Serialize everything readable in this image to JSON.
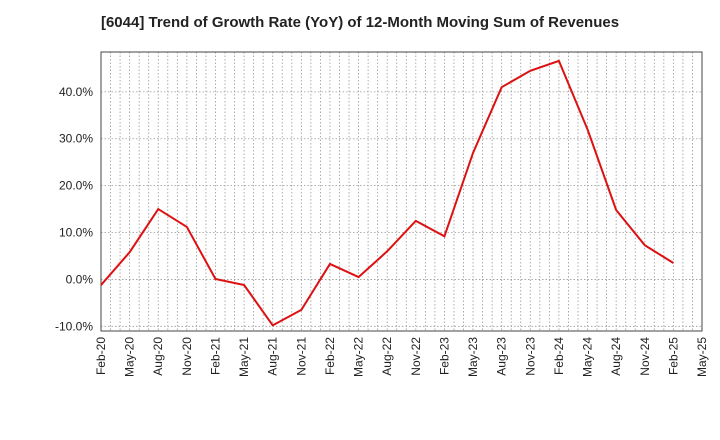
{
  "chart_data": {
    "type": "line",
    "title": "[6044]  Trend of Growth Rate (YoY) of 12-Month Moving Sum of Revenues",
    "xlabel": "",
    "ylabel": "",
    "x_ticks": [
      "Feb-20",
      "May-20",
      "Aug-20",
      "Nov-20",
      "Feb-21",
      "May-21",
      "Aug-21",
      "Nov-21",
      "Feb-22",
      "May-22",
      "Aug-22",
      "Nov-22",
      "Feb-23",
      "May-23",
      "Aug-23",
      "Nov-23",
      "Feb-24",
      "May-24",
      "Aug-24",
      "Nov-24",
      "Feb-25",
      "May-25"
    ],
    "y_ticks": [
      "-10.0%",
      "0.0%",
      "10.0%",
      "20.0%",
      "30.0%",
      "40.0%"
    ],
    "y_tick_values": [
      -10,
      0,
      10,
      20,
      30,
      40
    ],
    "ylim": [
      -11,
      48.5
    ],
    "grid": true,
    "series": [
      {
        "color": "#dd1111",
        "x": [
          "Feb-20",
          "May-20",
          "Aug-20",
          "Nov-20",
          "Feb-21",
          "May-21",
          "Aug-21",
          "Nov-21",
          "Feb-22",
          "May-22",
          "Aug-22",
          "Nov-22",
          "Feb-23",
          "May-23",
          "Aug-23",
          "Nov-23",
          "Feb-24",
          "May-24",
          "Aug-24",
          "Nov-24",
          "Feb-25"
        ],
        "values": [
          -1.2,
          5.8,
          15.0,
          11.2,
          0.1,
          -1.2,
          -9.8,
          -6.5,
          3.3,
          0.5,
          6.0,
          12.5,
          9.2,
          27.0,
          41.0,
          44.5,
          46.6,
          32.0,
          14.8,
          7.3,
          3.5
        ]
      }
    ]
  }
}
